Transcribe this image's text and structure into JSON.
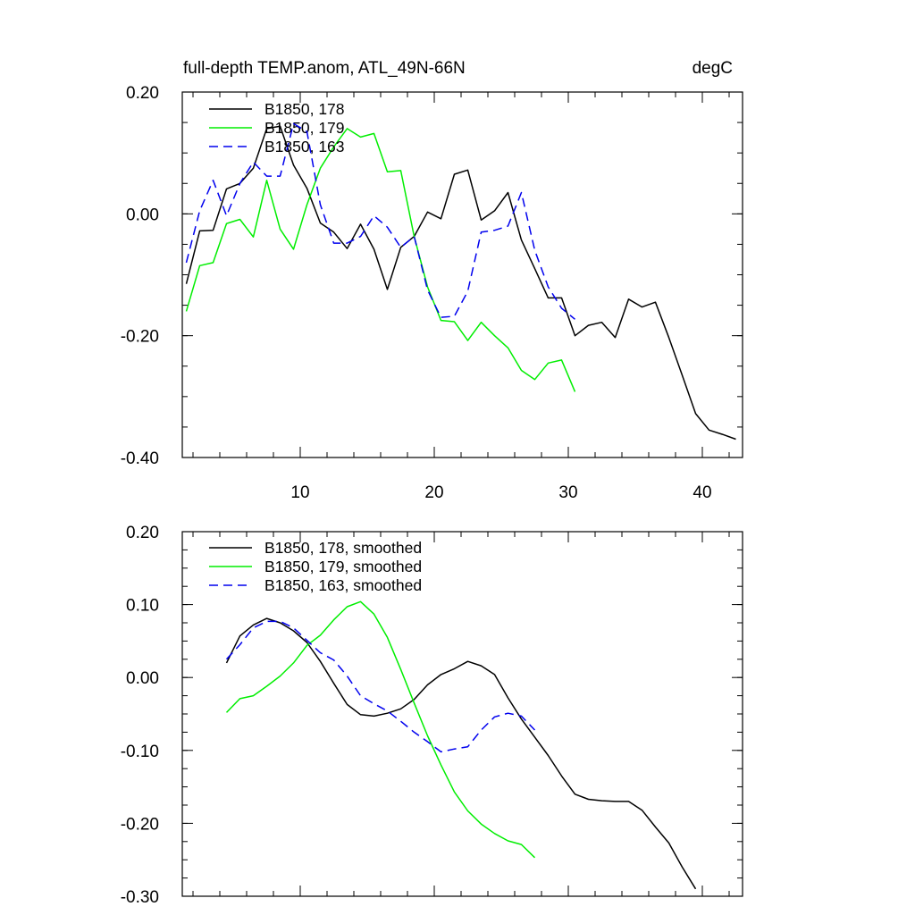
{
  "chart_data": [
    {
      "type": "line",
      "title_left": "full-depth TEMP.anom, ATL_49N-66N",
      "title_right": "degC",
      "xlim": [
        1.2,
        43
      ],
      "ylim": [
        -0.4,
        0.2
      ],
      "x_ticks": [
        10,
        20,
        30,
        40
      ],
      "x_tick_labels": [
        "10",
        "20",
        "30",
        "40"
      ],
      "y_ticks": [
        0.2,
        0.0,
        -0.2,
        -0.4
      ],
      "y_tick_labels": [
        "0.20",
        "0.00",
        "-0.20",
        "-0.40"
      ],
      "series": [
        {
          "name": "B1850, 178",
          "color": "#000000",
          "dash": "solid",
          "x": [
            1.5,
            2.5,
            3.5,
            4.5,
            5.5,
            6.5,
            7.5,
            8.5,
            9.5,
            10.5,
            11.5,
            12.5,
            13.5,
            14.5,
            15.5,
            16.5,
            17.5,
            18.5,
            19.5,
            20.5,
            21.5,
            22.5,
            23.5,
            24.5,
            25.5,
            26.5,
            27.5,
            28.5,
            29.5,
            30.5,
            31.5,
            32.5,
            33.5,
            34.5,
            35.5,
            36.5,
            37.5,
            38.5,
            39.5,
            40.5,
            41.5,
            42.5
          ],
          "y": [
            -0.115,
            -0.028,
            -0.027,
            0.041,
            0.05,
            0.075,
            0.14,
            0.144,
            0.08,
            0.042,
            -0.015,
            -0.03,
            -0.057,
            -0.017,
            -0.058,
            -0.124,
            -0.055,
            -0.037,
            0.003,
            -0.008,
            0.065,
            0.072,
            -0.01,
            0.005,
            0.035,
            -0.043,
            -0.09,
            -0.138,
            -0.138,
            -0.2,
            -0.183,
            -0.178,
            -0.203,
            -0.14,
            -0.153,
            -0.145,
            -0.203,
            -0.265,
            -0.328,
            -0.355,
            -0.362,
            -0.37
          ]
        },
        {
          "name": "B1850, 179",
          "color": "#00ee00",
          "dash": "solid",
          "x": [
            1.5,
            2.5,
            3.5,
            4.5,
            5.5,
            6.5,
            7.5,
            8.5,
            9.5,
            10.5,
            11.5,
            12.5,
            13.5,
            14.5,
            15.5,
            16.5,
            17.5,
            18.5,
            19.5,
            20.5,
            21.5,
            22.5,
            23.5,
            24.5,
            25.5,
            26.5,
            27.5,
            28.5,
            29.5,
            30.5
          ],
          "y": [
            -0.16,
            -0.085,
            -0.08,
            -0.016,
            -0.009,
            -0.038,
            0.055,
            -0.025,
            -0.058,
            0.015,
            0.075,
            0.11,
            0.14,
            0.126,
            0.132,
            0.069,
            0.071,
            -0.037,
            -0.12,
            -0.175,
            -0.177,
            -0.208,
            -0.178,
            -0.2,
            -0.22,
            -0.257,
            -0.272,
            -0.245,
            -0.24,
            -0.292
          ]
        },
        {
          "name": "B1850, 163",
          "color": "#0000ee",
          "dash": "dashed",
          "x": [
            1.5,
            2.5,
            3.5,
            4.5,
            5.5,
            6.5,
            7.5,
            8.5,
            9.5,
            10.5,
            11.5,
            12.5,
            13.5,
            14.5,
            15.5,
            16.5,
            17.5,
            18.5,
            19.5,
            20.5,
            21.5,
            22.5,
            23.5,
            24.5,
            25.5,
            26.5,
            27.5,
            28.5,
            29.5,
            30.5
          ],
          "y": [
            -0.08,
            0.005,
            0.055,
            -0.003,
            0.05,
            0.085,
            0.062,
            0.062,
            0.148,
            0.135,
            0.015,
            -0.048,
            -0.048,
            -0.037,
            -0.003,
            -0.022,
            -0.055,
            -0.037,
            -0.125,
            -0.17,
            -0.168,
            -0.127,
            -0.03,
            -0.027,
            -0.02,
            0.035,
            -0.06,
            -0.12,
            -0.155,
            -0.173
          ]
        }
      ]
    },
    {
      "type": "line",
      "xlim": [
        1.2,
        43
      ],
      "ylim": [
        -0.3,
        0.2
      ],
      "x_ticks": [
        10,
        20,
        30,
        40
      ],
      "y_ticks": [
        0.2,
        0.1,
        0.0,
        -0.1,
        -0.2,
        -0.3
      ],
      "y_tick_labels": [
        "0.20",
        "0.10",
        "0.00",
        "-0.10",
        "-0.20",
        "-0.30"
      ],
      "series": [
        {
          "name": "B1850, 178, smoothed",
          "color": "#000000",
          "dash": "solid",
          "x": [
            4.5,
            5.5,
            6.5,
            7.5,
            8.5,
            9.5,
            10.5,
            11.5,
            12.5,
            13.5,
            14.5,
            15.5,
            16.5,
            17.5,
            18.5,
            19.5,
            20.5,
            21.5,
            22.5,
            23.5,
            24.5,
            25.5,
            26.5,
            27.5,
            28.5,
            29.5,
            30.5,
            31.5,
            32.5,
            33.5,
            34.5,
            35.5,
            36.5,
            37.5,
            38.5,
            39.5
          ],
          "y": [
            0.02,
            0.057,
            0.072,
            0.081,
            0.075,
            0.064,
            0.048,
            0.022,
            -0.008,
            -0.037,
            -0.051,
            -0.053,
            -0.049,
            -0.043,
            -0.03,
            -0.01,
            0.004,
            0.012,
            0.022,
            0.016,
            0.004,
            -0.028,
            -0.057,
            -0.082,
            -0.107,
            -0.135,
            -0.16,
            -0.167,
            -0.169,
            -0.17,
            -0.17,
            -0.182,
            -0.205,
            -0.227,
            -0.26,
            -0.29
          ]
        },
        {
          "name": "B1850, 179, smoothed",
          "color": "#00ee00",
          "dash": "solid",
          "x": [
            4.5,
            5.5,
            6.5,
            7.5,
            8.5,
            9.5,
            10.5,
            11.5,
            12.5,
            13.5,
            14.5,
            15.5,
            16.5,
            17.5,
            18.5,
            19.5,
            20.5,
            21.5,
            22.5,
            23.5,
            24.5,
            25.5,
            26.5,
            27.5
          ],
          "y": [
            -0.048,
            -0.029,
            -0.025,
            -0.012,
            0.002,
            0.02,
            0.044,
            0.058,
            0.079,
            0.097,
            0.104,
            0.087,
            0.055,
            0.011,
            -0.035,
            -0.08,
            -0.12,
            -0.157,
            -0.183,
            -0.201,
            -0.214,
            -0.224,
            -0.229,
            -0.247
          ]
        },
        {
          "name": "B1850, 163, smoothed",
          "color": "#0000ee",
          "dash": "dashed",
          "x": [
            4.5,
            5.5,
            6.5,
            7.5,
            8.5,
            9.5,
            10.5,
            11.5,
            12.5,
            13.5,
            14.5,
            15.5,
            16.5,
            17.5,
            18.5,
            19.5,
            20.5,
            21.5,
            22.5,
            23.5,
            24.5,
            25.5,
            26.5,
            27.5
          ],
          "y": [
            0.025,
            0.045,
            0.068,
            0.077,
            0.077,
            0.068,
            0.051,
            0.034,
            0.024,
            0.002,
            -0.025,
            -0.036,
            -0.046,
            -0.06,
            -0.075,
            -0.088,
            -0.102,
            -0.098,
            -0.095,
            -0.072,
            -0.054,
            -0.049,
            -0.053,
            -0.072
          ]
        }
      ]
    }
  ]
}
